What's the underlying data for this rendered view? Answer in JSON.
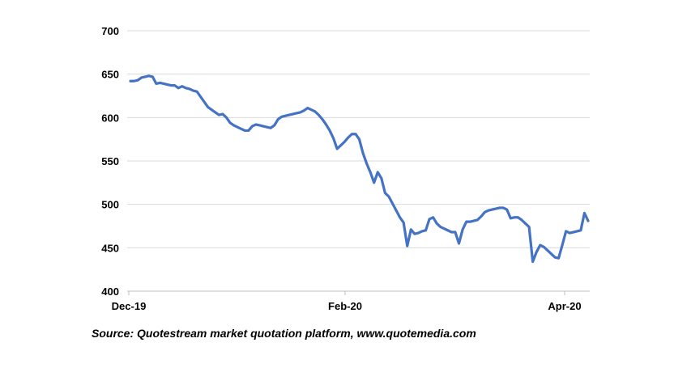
{
  "chart_data": {
    "type": "line",
    "title": "",
    "xlabel": "",
    "ylabel": "",
    "ylim": [
      400,
      700
    ],
    "yticks": [
      400,
      450,
      500,
      550,
      600,
      650,
      700
    ],
    "y_tick_labels": [
      "400",
      "450",
      "500",
      "550",
      "600",
      "650",
      "700"
    ],
    "x_tick_labels": [
      "Dec-19",
      "Feb-20",
      "Apr-20"
    ],
    "grid": true,
    "line_color": "#4472C4",
    "series": [
      {
        "name": "",
        "values": [
          642,
          642,
          643,
          646,
          647,
          648,
          647,
          639,
          640,
          639,
          638,
          637,
          637,
          634,
          636,
          634,
          633,
          631,
          630,
          624,
          618,
          612,
          609,
          606,
          603,
          604,
          600,
          594,
          591,
          589,
          587,
          585,
          585,
          590,
          592,
          591,
          590,
          589,
          588,
          591,
          598,
          601,
          602,
          603,
          604,
          605,
          606,
          608,
          611,
          609,
          607,
          603,
          598,
          592,
          585,
          576,
          564,
          568,
          572,
          577,
          581,
          581,
          575,
          559,
          547,
          537,
          525,
          537,
          530,
          513,
          509,
          501,
          493,
          485,
          479,
          452,
          471,
          466,
          467,
          469,
          470,
          483,
          485,
          478,
          474,
          472,
          470,
          468,
          468,
          455,
          471,
          480,
          480,
          481,
          482,
          486,
          491,
          493,
          494,
          495,
          496,
          496,
          494,
          484,
          485,
          485,
          482,
          478,
          474,
          434,
          445,
          453,
          451,
          447,
          443,
          439,
          438,
          453,
          469,
          467,
          468,
          469,
          470,
          490,
          481
        ]
      }
    ],
    "source": "Source:  Quotestream market quotation platform, www.quotemedia.com"
  }
}
